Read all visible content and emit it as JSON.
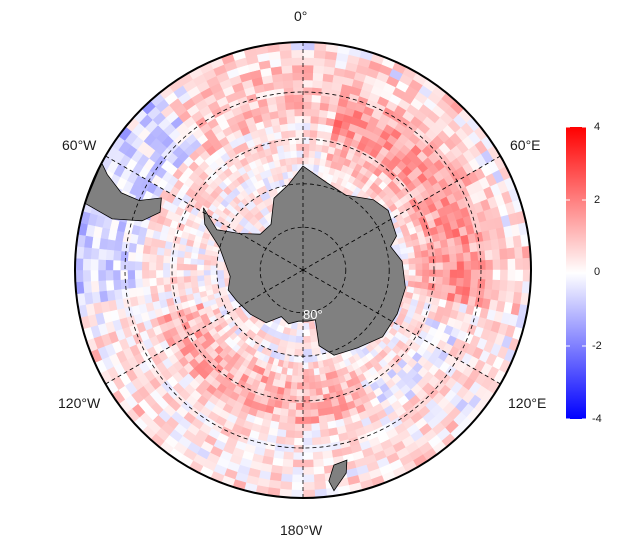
{
  "map": {
    "projection": "south-polar-stereographic",
    "colors": {
      "ocean_missing": "#ffffff",
      "land": "#808080",
      "coastline": "#000000",
      "graticule": "#000000",
      "boundary": "#000000"
    },
    "longitude_labels": [
      {
        "id": "lon-0",
        "text": "0°"
      },
      {
        "id": "lon-60e",
        "text": "60°E"
      },
      {
        "id": "lon-120e",
        "text": "120°E"
      },
      {
        "id": "lon-180w",
        "text": "180°W"
      },
      {
        "id": "lon-120w",
        "text": "120°W"
      },
      {
        "id": "lon-60w",
        "text": "60°W"
      }
    ],
    "latitude_label": "80°",
    "graticule_latitudes": [
      -80,
      -70,
      -60,
      -50
    ],
    "outer_latitude": -40
  },
  "colorbar": {
    "min": -4,
    "max": 4,
    "ticks": [
      {
        "value": 4,
        "label": "4"
      },
      {
        "value": 2,
        "label": "2"
      },
      {
        "value": 0,
        "label": "0"
      },
      {
        "value": -2,
        "label": "-2"
      },
      {
        "value": -4,
        "label": "-4"
      }
    ],
    "colors": {
      "low": "#0000ff",
      "mid": "#ffffff",
      "high": "#ff0000"
    }
  }
}
